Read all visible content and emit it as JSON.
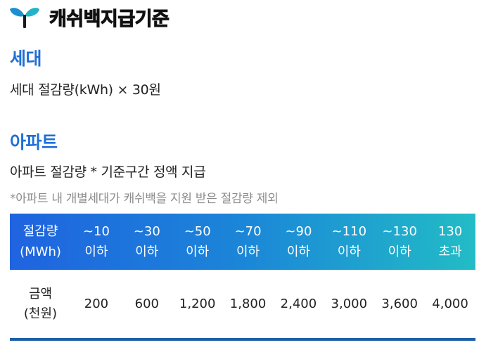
{
  "header": {
    "title": "캐쉬백지급기준",
    "icon": "sprout-icon"
  },
  "household": {
    "title": "세대",
    "formula": "세대 절감량(kWh) × 30원"
  },
  "apartment": {
    "title": "아파트",
    "formula": "아파트 절감량 * 기준구간 정액 지급",
    "note": "*아파트 내 개별세대가 캐쉬백을 지원 받은 절감량 제외"
  },
  "table": {
    "header_label": [
      "절감량",
      "(MWh)"
    ],
    "columns": [
      [
        "~10",
        "이하"
      ],
      [
        "~30",
        "이하"
      ],
      [
        "~50",
        "이하"
      ],
      [
        "~70",
        "이하"
      ],
      [
        "~90",
        "이하"
      ],
      [
        "~110",
        "이하"
      ],
      [
        "~130",
        "이하"
      ],
      [
        "130",
        "초과"
      ]
    ],
    "row_label": [
      "금액",
      "(천원)"
    ],
    "amounts": [
      "200",
      "600",
      "1,200",
      "1,800",
      "2,400",
      "3,000",
      "3,600",
      "4,000"
    ]
  },
  "colors": {
    "accent": "#1f6fd6",
    "header_gradient": [
      "#1f63e0",
      "#1b86d8",
      "#22bcc6"
    ],
    "bottom_rule": "#1f5faa",
    "note": "#8c8c8c"
  }
}
